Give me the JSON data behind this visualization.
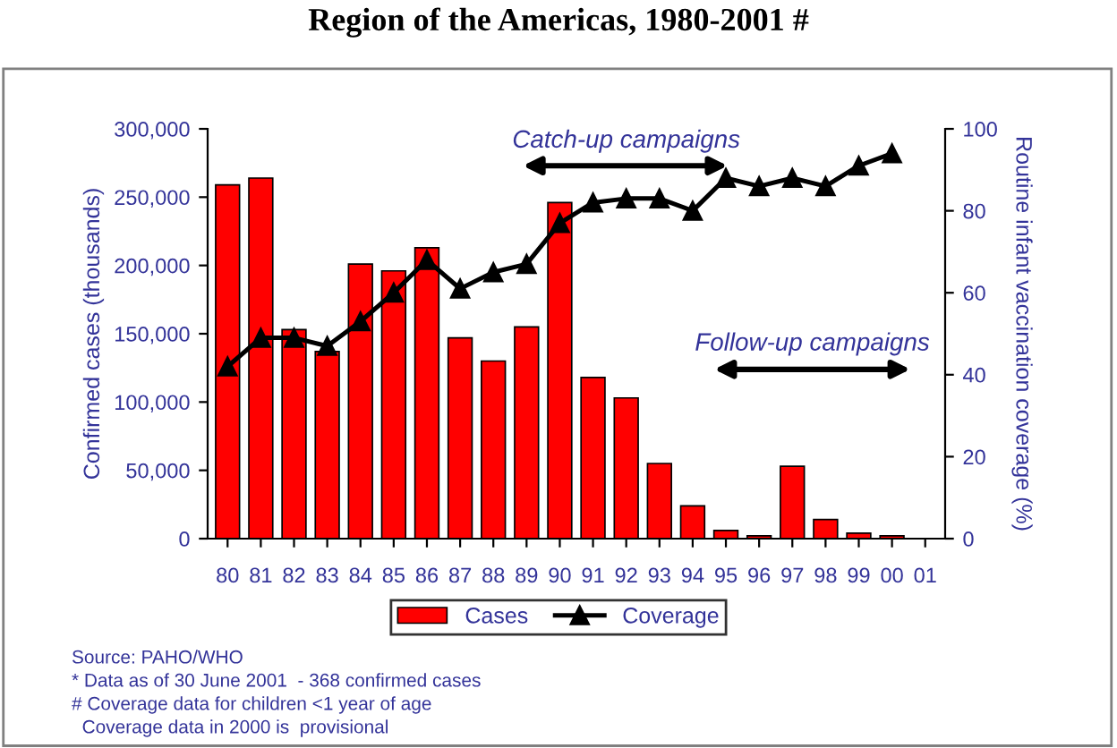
{
  "chart_data": {
    "type": "bar",
    "title": "Region of the Americas, 1980-2001 #",
    "categories": [
      "80",
      "81",
      "82",
      "83",
      "84",
      "85",
      "86",
      "87",
      "88",
      "89",
      "90",
      "91",
      "92",
      "93",
      "94",
      "95",
      "96",
      "97",
      "98",
      "99",
      "00",
      "01"
    ],
    "series": [
      {
        "name": "Cases",
        "color": "#ff0000",
        "values": [
          259000,
          264000,
          153000,
          137000,
          201000,
          196000,
          213000,
          147000,
          130000,
          155000,
          246000,
          118000,
          103000,
          55000,
          24000,
          6000,
          2000,
          53000,
          14000,
          4000,
          2000,
          null
        ]
      },
      {
        "name": "Coverage",
        "type": "line",
        "axis": "y2",
        "color": "#000000",
        "marker": "triangle",
        "values": [
          42,
          49,
          49,
          47,
          53,
          60,
          68,
          61,
          65,
          67,
          77,
          82,
          83,
          83,
          80,
          88,
          86,
          88,
          86,
          91,
          94,
          null
        ]
      }
    ],
    "ylabel": "Confirmed cases (thousands)",
    "y2label": "Routine infant vaccination coverage (%)",
    "ylim": [
      0,
      300000
    ],
    "yticks": [
      {
        "value": 0,
        "label": "0"
      },
      {
        "value": 50000,
        "label": "50,000"
      },
      {
        "value": 100000,
        "label": "100,000"
      },
      {
        "value": 150000,
        "label": "150,000"
      },
      {
        "value": 200000,
        "label": "200,000"
      },
      {
        "value": 250000,
        "label": "250,000"
      },
      {
        "value": 300000,
        "label": "300,000"
      }
    ],
    "y2lim": [
      0,
      100
    ],
    "y2ticks": [
      0,
      20,
      40,
      60,
      80,
      100
    ],
    "legend": "bottom",
    "grid": false,
    "annotations": [
      "Catch-up campaigns",
      "Follow-up campaigns",
      "Source: PAHO/WHO",
      "* Data as of 30 June 2001  - 368 confirmed cases",
      "# Coverage data for children <1 year of age",
      "  Coverage data in 2000 is  provisional"
    ]
  }
}
